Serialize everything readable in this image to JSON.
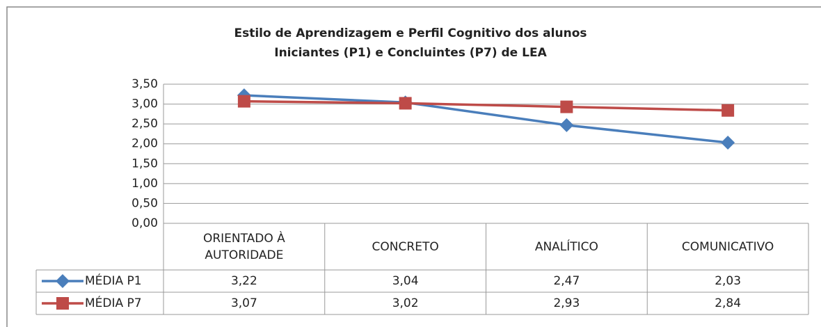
{
  "chart_data": {
    "type": "line",
    "title": "Estilo de Aprendizagem e Perfil Cognitivo dos alunos",
    "subtitle": "Iniciantes  (P1) e Concluintes  (P7) de LEA",
    "categories": [
      "ORIENTADO À AUTORIDADE",
      "CONCRETO",
      "ANALÍTICO",
      "COMUNICATIVO"
    ],
    "series": [
      {
        "name": "MÉDIA P1",
        "color": "#4a7ebb",
        "marker": "diamond",
        "values": [
          3.22,
          3.04,
          2.47,
          2.03
        ],
        "value_labels": [
          "3,22",
          "3,04",
          "2,47",
          "2,03"
        ]
      },
      {
        "name": "MÉDIA P7",
        "color": "#be4b48",
        "marker": "square",
        "values": [
          3.07,
          3.02,
          2.93,
          2.84
        ],
        "value_labels": [
          "3,07",
          "3,02",
          "2,93",
          "2,84"
        ]
      }
    ],
    "ylim": [
      0,
      3.5
    ],
    "yticks": [
      {
        "value": 0,
        "label": "0,00"
      },
      {
        "value": 0.5,
        "label": "0,50"
      },
      {
        "value": 1,
        "label": "1,00"
      },
      {
        "value": 1.5,
        "label": "1,50"
      },
      {
        "value": 2,
        "label": "2,00"
      },
      {
        "value": 2.5,
        "label": "2,50"
      },
      {
        "value": 3,
        "label": "3,00"
      },
      {
        "value": 3.5,
        "label": "3,50"
      }
    ],
    "grid": true
  }
}
